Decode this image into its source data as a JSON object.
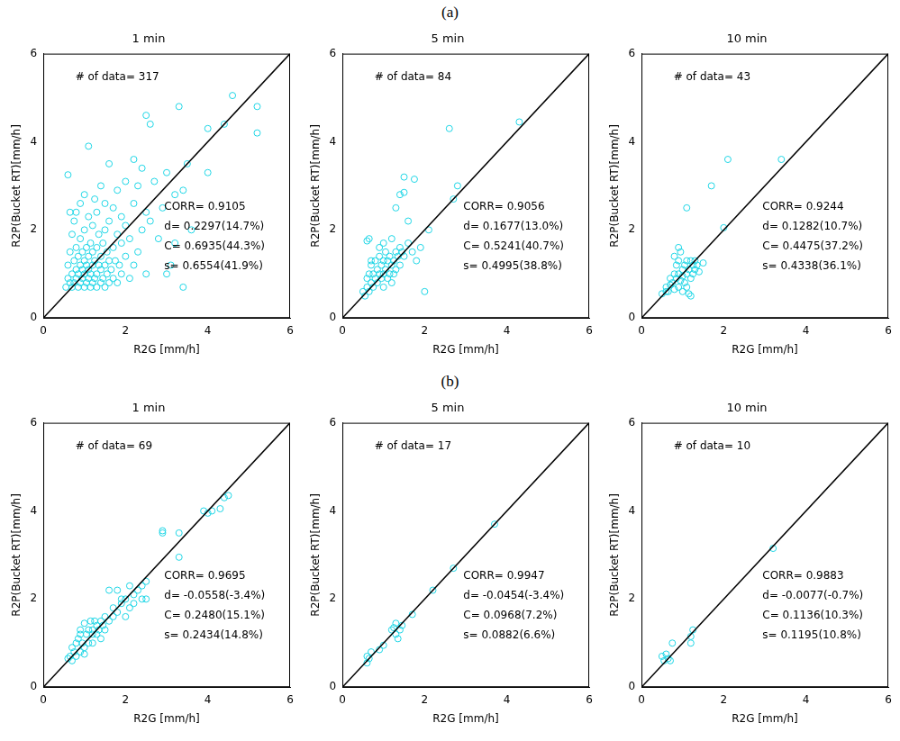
{
  "panel_labels": [
    "(a)",
    "(b)"
  ],
  "chart_data": [
    {
      "panel": "(a)",
      "type": "scatter",
      "title": "1 min",
      "x_label": "R2G [mm/h]",
      "y_label": "R2P(Bucket RT)[mm/h]",
      "xlim": [
        0,
        6
      ],
      "ylim": [
        0,
        6
      ],
      "xticks": [
        0,
        2,
        4,
        6
      ],
      "yticks": [
        0,
        2,
        4,
        6
      ],
      "grid": false,
      "color": "#1fd6e6",
      "marker": "circle",
      "x": [
        0.55,
        0.6,
        0.6,
        0.6,
        0.65,
        0.65,
        0.65,
        0.7,
        0.7,
        0.7,
        0.75,
        0.75,
        0.75,
        0.8,
        0.8,
        0.8,
        0.8,
        0.85,
        0.85,
        0.85,
        0.9,
        0.9,
        0.9,
        0.9,
        0.95,
        0.95,
        0.95,
        1.0,
        1.0,
        1.0,
        1.0,
        1.0,
        1.05,
        1.05,
        1.05,
        1.1,
        1.1,
        1.1,
        1.1,
        1.1,
        1.15,
        1.15,
        1.15,
        1.2,
        1.2,
        1.2,
        1.2,
        1.25,
        1.25,
        1.25,
        1.3,
        1.3,
        1.3,
        1.3,
        1.35,
        1.35,
        1.4,
        1.4,
        1.4,
        1.4,
        1.45,
        1.45,
        1.5,
        1.5,
        1.5,
        1.5,
        1.55,
        1.55,
        1.6,
        1.6,
        1.6,
        1.6,
        1.65,
        1.7,
        1.7,
        1.7,
        1.75,
        1.8,
        1.8,
        1.8,
        1.85,
        1.9,
        1.9,
        1.9,
        2.0,
        2.0,
        2.0,
        2.1,
        2.1,
        2.2,
        2.2,
        2.3,
        2.3,
        2.4,
        2.4,
        2.5,
        2.5,
        2.5,
        2.6,
        2.6,
        2.7,
        2.8,
        2.9,
        3.0,
        3.1,
        3.2,
        3.3,
        3.4,
        3.4,
        3.5,
        3.6,
        4.0,
        4.0,
        4.4,
        4.6,
        5.2,
        5.2,
        3.0,
        2.2,
        3.2
      ],
      "values": [
        0.7,
        0.9,
        1.2,
        3.25,
        0.8,
        1.5,
        2.4,
        0.7,
        1.0,
        1.9,
        0.8,
        1.3,
        2.2,
        0.9,
        1.1,
        1.6,
        2.4,
        0.7,
        1.0,
        1.4,
        0.8,
        1.2,
        1.8,
        2.6,
        0.9,
        1.1,
        1.5,
        0.7,
        1.0,
        1.3,
        2.0,
        2.8,
        0.8,
        1.2,
        1.6,
        0.9,
        1.1,
        1.4,
        2.3,
        3.9,
        0.7,
        1.0,
        1.7,
        0.8,
        1.2,
        1.5,
        2.1,
        0.9,
        1.3,
        2.7,
        0.7,
        1.0,
        1.6,
        2.4,
        1.2,
        1.9,
        0.8,
        1.1,
        1.4,
        3.0,
        0.9,
        1.7,
        0.7,
        1.2,
        2.0,
        2.6,
        1.0,
        1.5,
        0.8,
        1.3,
        2.2,
        3.5,
        1.1,
        0.9,
        1.6,
        2.5,
        1.3,
        0.8,
        1.9,
        2.9,
        1.2,
        1.0,
        1.7,
        2.3,
        1.4,
        2.1,
        3.1,
        0.9,
        1.8,
        1.2,
        2.6,
        1.5,
        3.0,
        2.0,
        3.4,
        1.0,
        2.4,
        4.6,
        4.4,
        2.2,
        3.1,
        1.8,
        2.5,
        3.3,
        1.2,
        2.8,
        4.8,
        0.7,
        2.9,
        3.5,
        2.0,
        4.3,
        3.3,
        4.4,
        5.05,
        4.8,
        4.2,
        1.0,
        3.6,
        1.7
      ],
      "reference_line": {
        "x": [
          0,
          6
        ],
        "values": [
          0,
          6
        ],
        "color": "#000000"
      },
      "annotations": [
        "# of data= 317",
        "CORR= 0.9105",
        "d= 0.2297(14.7%)",
        "C= 0.6935(44.3%)",
        "s= 0.6554(41.9%)"
      ]
    },
    {
      "panel": "(a)",
      "type": "scatter",
      "title": "5 min",
      "x_label": "R2G [mm/h]",
      "y_label": "R2P(Bucket RT)[mm/h]",
      "xlim": [
        0,
        6
      ],
      "ylim": [
        0,
        6
      ],
      "xticks": [
        0,
        2,
        4,
        6
      ],
      "yticks": [
        0,
        2,
        4,
        6
      ],
      "grid": false,
      "color": "#1fd6e6",
      "marker": "circle",
      "x": [
        0.5,
        0.55,
        0.6,
        0.6,
        0.65,
        0.65,
        0.7,
        0.7,
        0.75,
        0.75,
        0.8,
        0.8,
        0.85,
        0.85,
        0.9,
        0.9,
        0.95,
        0.95,
        1.0,
        1.0,
        1.0,
        1.05,
        1.05,
        1.1,
        1.1,
        1.15,
        1.15,
        1.2,
        1.2,
        1.25,
        1.25,
        1.3,
        1.3,
        1.35,
        1.4,
        1.4,
        1.45,
        1.5,
        0.6,
        0.65,
        1.4,
        1.5,
        1.5,
        1.75,
        1.3,
        1.6,
        2.0,
        2.6,
        2.7,
        2.8,
        4.3,
        1.9,
        1.7,
        1.8,
        2.1,
        1.0,
        0.9,
        1.2,
        0.7,
        1.6
      ],
      "values": [
        0.6,
        0.5,
        0.7,
        0.9,
        0.6,
        1.0,
        0.8,
        1.2,
        0.7,
        1.0,
        0.9,
        1.3,
        0.8,
        1.1,
        1.0,
        1.4,
        0.9,
        1.2,
        1.0,
        0.7,
        1.3,
        1.1,
        1.5,
        0.9,
        1.3,
        1.0,
        1.4,
        1.2,
        0.8,
        1.3,
        1.0,
        1.5,
        1.1,
        1.4,
        1.2,
        1.6,
        1.5,
        1.4,
        1.75,
        1.8,
        2.8,
        2.85,
        3.2,
        3.15,
        2.5,
        2.2,
        0.6,
        4.3,
        2.7,
        3.0,
        4.45,
        1.6,
        1.5,
        1.3,
        2.0,
        1.7,
        1.6,
        1.8,
        1.3,
        1.7
      ],
      "reference_line": {
        "x": [
          0,
          6
        ],
        "values": [
          0,
          6
        ],
        "color": "#000000"
      },
      "annotations": [
        "# of data= 84",
        "CORR= 0.9056",
        "d= 0.1677(13.0%)",
        "C= 0.5241(40.7%)",
        "s= 0.4995(38.8%)"
      ]
    },
    {
      "panel": "(a)",
      "type": "scatter",
      "title": "10 min",
      "x_label": "R2G [mm/h]",
      "y_label": "R2P(Bucket RT)[mm/h]",
      "xlim": [
        0,
        6
      ],
      "ylim": [
        0,
        6
      ],
      "xticks": [
        0,
        2,
        4,
        6
      ],
      "yticks": [
        0,
        2,
        4,
        6
      ],
      "grid": false,
      "color": "#1fd6e6",
      "marker": "circle",
      "x": [
        0.5,
        0.6,
        0.65,
        0.7,
        0.7,
        0.75,
        0.8,
        0.8,
        0.85,
        0.85,
        0.9,
        0.9,
        0.9,
        0.95,
        0.95,
        1.0,
        1.0,
        1.0,
        1.05,
        1.05,
        1.1,
        1.1,
        1.1,
        1.15,
        1.15,
        1.2,
        1.2,
        1.25,
        1.25,
        1.3,
        1.3,
        1.35,
        1.4,
        1.2,
        0.6,
        0.9,
        1.1,
        1.7,
        2.1,
        3.4,
        2.0,
        1.5,
        0.8
      ],
      "values": [
        0.55,
        0.7,
        0.6,
        0.9,
        0.75,
        0.8,
        1.0,
        0.65,
        1.2,
        0.9,
        1.3,
        1.0,
        0.7,
        1.5,
        0.85,
        1.1,
        0.95,
        0.6,
        1.2,
        0.8,
        1.3,
        1.0,
        0.7,
        1.1,
        0.55,
        1.3,
        0.9,
        1.2,
        1.0,
        1.1,
        1.3,
        1.2,
        1.05,
        0.5,
        0.6,
        1.6,
        2.5,
        3.0,
        3.6,
        3.6,
        2.05,
        1.25,
        1.4
      ],
      "reference_line": {
        "x": [
          0,
          6
        ],
        "values": [
          0,
          6
        ],
        "color": "#000000"
      },
      "annotations": [
        "# of data= 43",
        "CORR= 0.9244",
        "d= 0.1282(10.7%)",
        "C= 0.4475(37.2%)",
        "s= 0.4338(36.1%)"
      ]
    },
    {
      "panel": "(b)",
      "type": "scatter",
      "title": "1 min",
      "x_label": "R2G [mm/h]",
      "y_label": "R2P(Bucket RT)[mm/h]",
      "xlim": [
        0,
        6
      ],
      "ylim": [
        0,
        6
      ],
      "xticks": [
        0,
        2,
        4,
        6
      ],
      "yticks": [
        0,
        2,
        4,
        6
      ],
      "grid": false,
      "color": "#1fd6e6",
      "marker": "circle",
      "x": [
        0.6,
        0.65,
        0.7,
        0.7,
        0.75,
        0.8,
        0.8,
        0.85,
        0.9,
        0.9,
        0.95,
        1.0,
        1.0,
        1.05,
        1.1,
        1.1,
        1.15,
        1.2,
        1.2,
        1.25,
        1.3,
        1.3,
        1.35,
        1.4,
        1.4,
        1.45,
        1.5,
        1.5,
        1.6,
        1.7,
        1.8,
        1.8,
        1.9,
        2.0,
        2.0,
        2.1,
        2.2,
        2.2,
        2.3,
        2.4,
        2.5,
        2.5,
        2.4,
        2.1,
        1.6,
        1.2,
        0.9,
        1.0,
        2.9,
        2.9,
        3.3,
        3.3,
        3.9,
        4.0,
        4.3,
        4.4,
        4.5,
        4.1,
        1.9,
        1.7
      ],
      "values": [
        0.65,
        0.7,
        0.9,
        0.6,
        0.8,
        1.0,
        0.7,
        1.1,
        1.2,
        0.8,
        1.0,
        1.45,
        0.9,
        1.2,
        1.3,
        1.0,
        1.5,
        1.3,
        1.0,
        1.5,
        1.2,
        1.4,
        1.3,
        1.5,
        1.1,
        1.4,
        1.3,
        1.6,
        1.5,
        1.6,
        1.7,
        2.2,
        1.9,
        2.0,
        1.6,
        2.3,
        2.1,
        1.9,
        2.2,
        2.0,
        2.0,
        2.4,
        2.3,
        1.8,
        2.2,
        1.2,
        1.3,
        0.75,
        3.5,
        3.55,
        3.5,
        2.95,
        4.0,
        3.95,
        4.05,
        4.3,
        4.35,
        4.0,
        2.0,
        1.8
      ],
      "reference_line": {
        "x": [
          0,
          6
        ],
        "values": [
          0,
          6
        ],
        "color": "#000000"
      },
      "annotations": [
        "# of data= 69",
        "CORR= 0.9695",
        "d= -0.0558(-3.4%)",
        "C= 0.2480(15.1%)",
        "s= 0.2434(14.8%)"
      ]
    },
    {
      "panel": "(b)",
      "type": "scatter",
      "title": "5 min",
      "x_label": "R2G [mm/h]",
      "y_label": "R2P(Bucket RT)[mm/h]",
      "xlim": [
        0,
        6
      ],
      "ylim": [
        0,
        6
      ],
      "xticks": [
        0,
        2,
        4,
        6
      ],
      "yticks": [
        0,
        2,
        4,
        6
      ],
      "grid": false,
      "color": "#1fd6e6",
      "marker": "circle",
      "x": [
        0.6,
        0.65,
        0.7,
        0.6,
        0.9,
        1.0,
        1.2,
        1.25,
        1.3,
        1.4,
        1.45,
        1.35,
        1.7,
        2.2,
        2.7,
        3.7,
        1.3
      ],
      "values": [
        0.55,
        0.65,
        0.8,
        0.7,
        0.85,
        0.95,
        1.3,
        1.35,
        1.2,
        1.3,
        1.4,
        1.1,
        1.65,
        2.2,
        2.7,
        3.7,
        1.45
      ],
      "reference_line": {
        "x": [
          0,
          6
        ],
        "values": [
          0,
          6
        ],
        "color": "#000000"
      },
      "annotations": [
        "# of data= 17",
        "CORR= 0.9947",
        "d= -0.0454(-3.4%)",
        "C= 0.0968(7.2%)",
        "s= 0.0882(6.6%)"
      ]
    },
    {
      "panel": "(b)",
      "type": "scatter",
      "title": "10 min",
      "x_label": "R2G [mm/h]",
      "y_label": "R2P(Bucket RT)[mm/h]",
      "xlim": [
        0,
        6
      ],
      "ylim": [
        0,
        6
      ],
      "xticks": [
        0,
        2,
        4,
        6
      ],
      "yticks": [
        0,
        2,
        4,
        6
      ],
      "grid": false,
      "color": "#1fd6e6",
      "marker": "circle",
      "x": [
        0.5,
        0.55,
        0.6,
        0.65,
        0.7,
        0.75,
        1.2,
        1.2,
        1.25,
        3.2
      ],
      "values": [
        0.7,
        0.6,
        0.75,
        0.65,
        0.6,
        1.0,
        1.0,
        1.15,
        1.3,
        3.15
      ],
      "reference_line": {
        "x": [
          0,
          6
        ],
        "values": [
          0,
          6
        ],
        "color": "#000000"
      },
      "annotations": [
        "# of data= 10",
        "CORR= 0.9883",
        "d= -0.0077(-0.7%)",
        "C= 0.1136(10.3%)",
        "s= 0.1195(10.8%)"
      ]
    }
  ]
}
